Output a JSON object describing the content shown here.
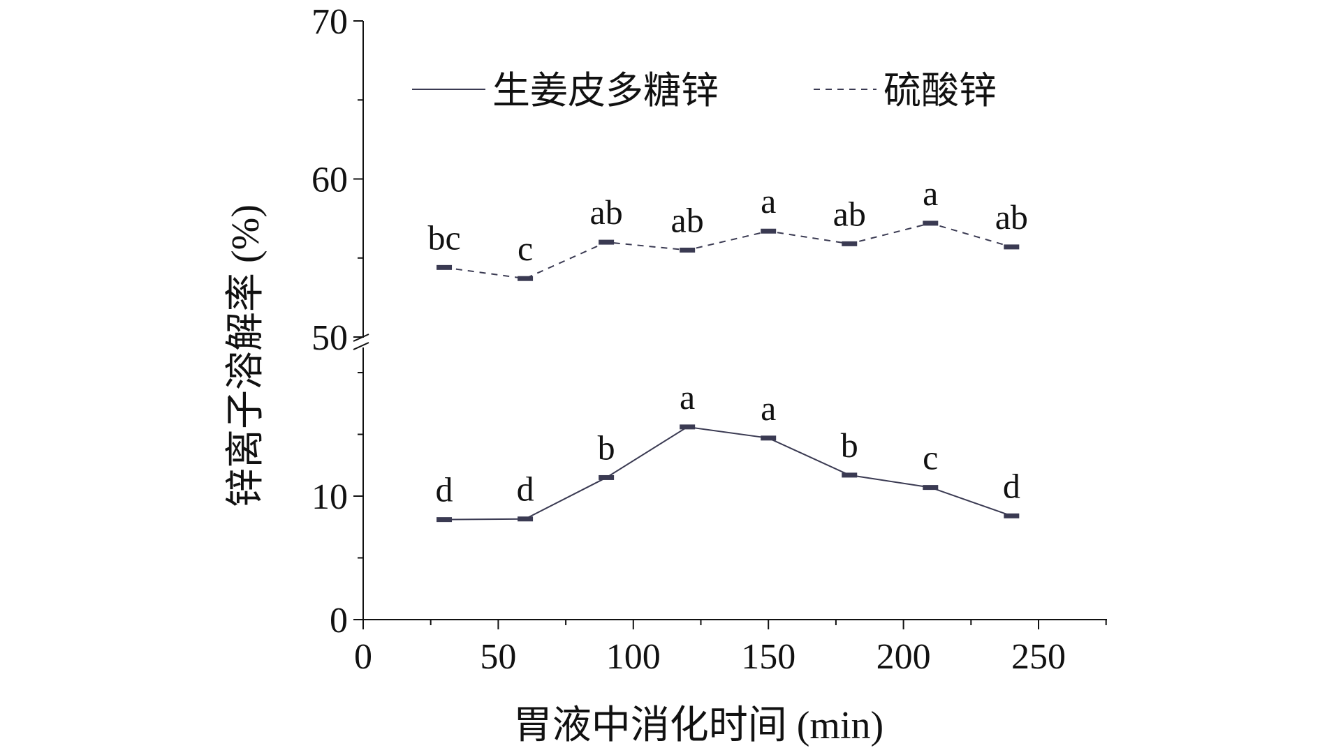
{
  "chart_data": {
    "type": "line",
    "xlabel": "胃液中消化时间 (min)",
    "ylabel": "锌离子溶解率 (%)",
    "xlim": [
      0,
      275
    ],
    "xticks": [
      0,
      50,
      100,
      150,
      200,
      250
    ],
    "y_axis_break": true,
    "y_lower_segment": {
      "ylim": [
        0,
        20
      ],
      "ticks": [
        0,
        10
      ]
    },
    "y_upper_segment": {
      "ylim": [
        50,
        70
      ],
      "ticks": [
        50,
        60,
        70
      ]
    },
    "legend_position": "top-center",
    "grid": false,
    "x": [
      30,
      60,
      90,
      120,
      150,
      180,
      210,
      240
    ],
    "series": [
      {
        "name": "生姜皮多糖锌",
        "line_style": "solid",
        "color": "#3a3a52",
        "values": [
          8.1,
          8.15,
          11.5,
          15.6,
          14.7,
          11.7,
          10.7,
          8.4
        ],
        "significance": [
          "d",
          "d",
          "b",
          "a",
          "a",
          "b",
          "c",
          "d"
        ]
      },
      {
        "name": "硫酸锌",
        "line_style": "dashed",
        "color": "#3a3a52",
        "values": [
          54.4,
          53.7,
          56.0,
          55.5,
          56.7,
          55.9,
          57.2,
          55.7
        ],
        "significance": [
          "bc",
          "c",
          "ab",
          "ab",
          "a",
          "ab",
          "a",
          "ab"
        ]
      }
    ]
  }
}
